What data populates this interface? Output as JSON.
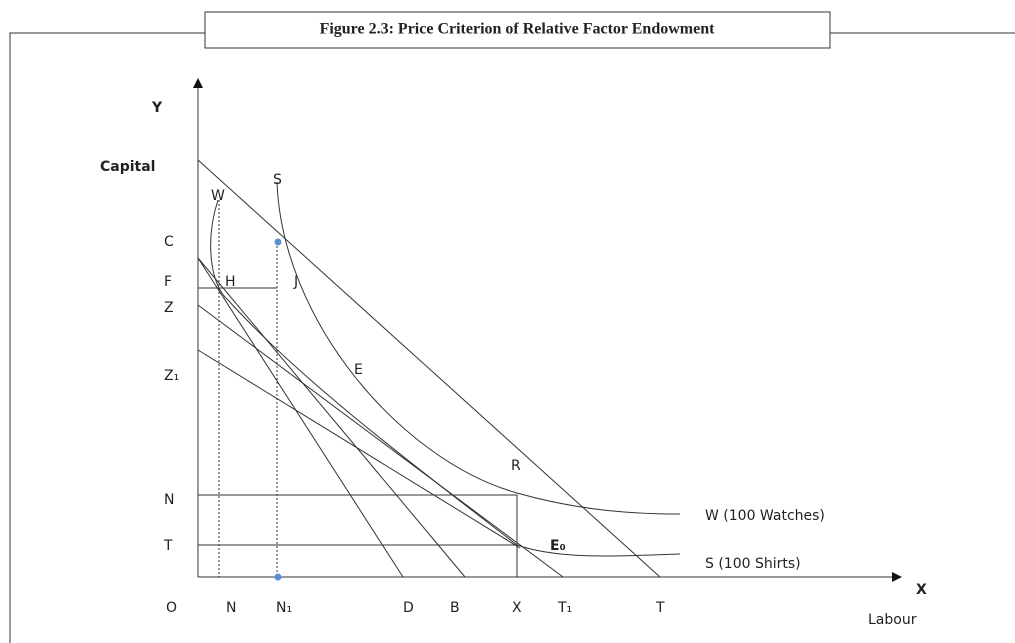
{
  "title": "Figure 2.3: Price Criterion of Relative Factor Endowment",
  "axes": {
    "y": "Y",
    "y_name": "Capital",
    "x": "X",
    "x_name": "Labour"
  },
  "y_labels": [
    "C",
    "F",
    "Z",
    "Z₁",
    "N",
    "T",
    "O"
  ],
  "x_labels": [
    "N",
    "N₁",
    "D",
    "B",
    "X",
    "T₁",
    "T"
  ],
  "point_labels": [
    "W",
    "S",
    "H",
    "J",
    "E",
    "R",
    "E₀"
  ],
  "curve_labels": [
    "W  (100 Watches)",
    "S  (100 Shirts)"
  ]
}
